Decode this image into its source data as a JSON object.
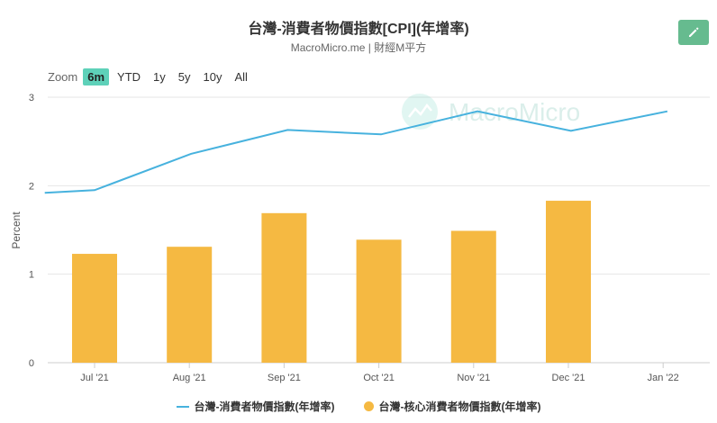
{
  "header": {
    "title": "台灣-消費者物價指數[CPI](年增率)",
    "subtitle": "MacroMicro.me | 財經M平方"
  },
  "toolbar": {
    "zoom_label": "Zoom",
    "zoom_options": [
      "6m",
      "YTD",
      "1y",
      "5y",
      "10y",
      "All"
    ],
    "active_zoom": "6m",
    "edit_icon": "pencil-icon"
  },
  "watermark": {
    "text": "MacroMicro"
  },
  "colors": {
    "line": "#47b2de",
    "bar": "#f5b942",
    "accent": "#5ed1b9",
    "edit": "#66bb8f"
  },
  "chart_data": {
    "type": "bar+line",
    "categories": [
      "Jul '21",
      "Aug '21",
      "Sep '21",
      "Oct '21",
      "Nov '21",
      "Dec '21",
      "Jan '22"
    ],
    "ylabel": "Percent",
    "ylim": [
      0,
      3
    ],
    "yticks": [
      0,
      1,
      2,
      3
    ],
    "grid": true,
    "legend_position": "bottom",
    "series": [
      {
        "name": "台灣-消費者物價指數(年增率)",
        "type": "line",
        "points": [
          {
            "x": "2021-06-15",
            "y": 1.92
          },
          {
            "x": "2021-07",
            "y": 1.95
          },
          {
            "x": "2021-08",
            "y": 2.36
          },
          {
            "x": "2021-09",
            "y": 2.63
          },
          {
            "x": "2021-10",
            "y": 2.58
          },
          {
            "x": "2021-11",
            "y": 2.84
          },
          {
            "x": "2021-12",
            "y": 2.62
          },
          {
            "x": "2022-01",
            "y": 2.84
          }
        ]
      },
      {
        "name": "台灣-核心消費者物價指數(年增率)",
        "type": "bar",
        "values": [
          1.23,
          1.31,
          1.69,
          1.39,
          1.49,
          1.83,
          null
        ]
      }
    ]
  }
}
